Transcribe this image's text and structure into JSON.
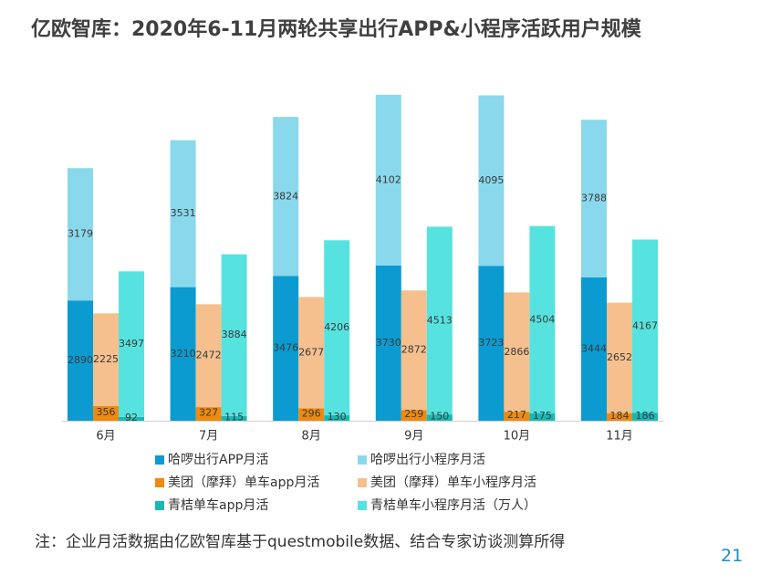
{
  "title": "亿欧智库：2020年6-11月两轮共享出行APP&小程序活跃用户规模",
  "note": "注：企业月活数据由亿欧智库基于questmobile数据、结合专家访谈测算所得",
  "page_number": "21",
  "chart_data": {
    "type": "bar",
    "title": "亿欧智库：2020年6-11月两轮共享出行APP&小程序活跃用户规模",
    "categories": [
      "6月",
      "7月",
      "8月",
      "9月",
      "10月",
      "11月"
    ],
    "stacks": [
      {
        "id": "haluo",
        "series": [
          {
            "name": "哈啰出行APP月活",
            "color": "#0b9bd1",
            "values": [
              2890,
              3210,
              3476,
              3730,
              3723,
              3444
            ]
          },
          {
            "name": "哈啰出行小程序月活",
            "color": "#8ad8ec",
            "values": [
              3179,
              3531,
              3824,
              4102,
              4095,
              3788
            ]
          }
        ]
      },
      {
        "id": "meituan",
        "series": [
          {
            "name": "美团（摩拜）单车app月活",
            "color": "#ee8a0e",
            "values": [
              356,
              327,
              296,
              259,
              217,
              184
            ]
          },
          {
            "name": "美团（摩拜）单车小程序月活",
            "color": "#f5c08e",
            "values": [
              2225,
              2472,
              2677,
              2872,
              2866,
              2652
            ]
          }
        ]
      },
      {
        "id": "qingju",
        "series": [
          {
            "name": "青桔单车app月活",
            "color": "#17b9b5",
            "values": [
              92,
              115,
              130,
              150,
              175,
              186
            ]
          },
          {
            "name": "青桔单车小程序月活（万人）",
            "color": "#56e3df",
            "values": [
              3497,
              3884,
              4206,
              4513,
              4504,
              4167
            ]
          }
        ]
      }
    ],
    "legend": [
      "哈啰出行APP月活",
      "哈啰出行小程序月活",
      "美团（摩拜）单车app月活",
      "美团（摩拜）单车小程序月活",
      "青桔单车app月活",
      "青桔单车小程序月活（万人）"
    ],
    "xlabel": "",
    "ylabel": "",
    "ylim": [
      0,
      8000
    ],
    "grid": false,
    "legend_position": "bottom"
  }
}
